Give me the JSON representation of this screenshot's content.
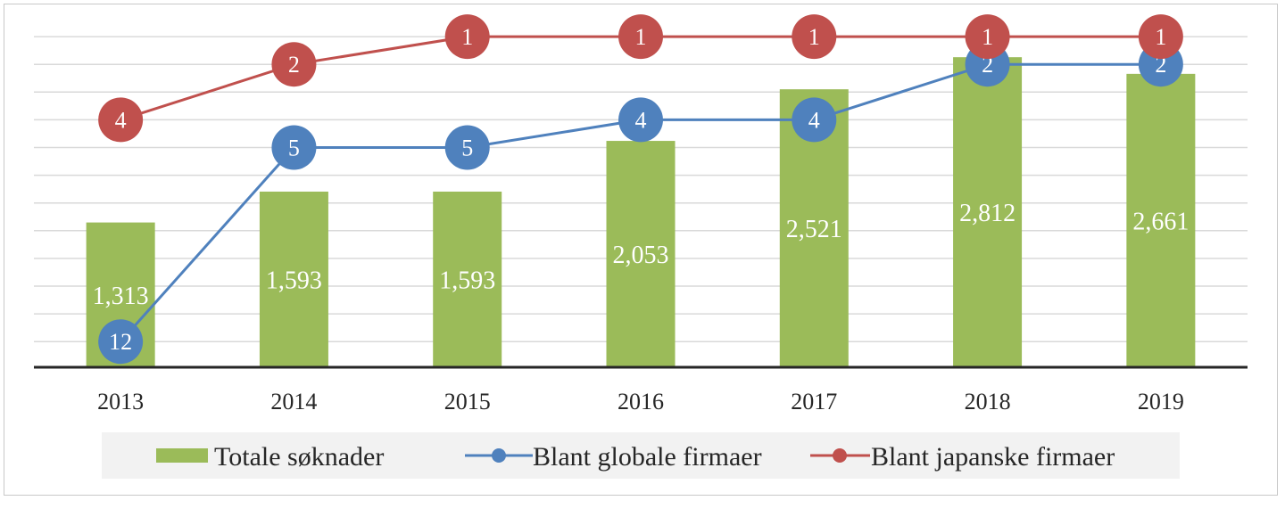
{
  "chart_data": {
    "type": "bar",
    "categories": [
      "2013",
      "2014",
      "2015",
      "2016",
      "2017",
      "2018",
      "2019"
    ],
    "bar_series": {
      "name": "Totale søknader",
      "values": [
        1313,
        1593,
        1593,
        2053,
        2521,
        2812,
        2661
      ],
      "labels": [
        "1,313",
        "1,593",
        "1,593",
        "2,053",
        "2,521",
        "2,812",
        "2,661"
      ],
      "color": "#9bbb59"
    },
    "line_series": [
      {
        "name": "Blant globale firmaer",
        "values": [
          12,
          5,
          5,
          4,
          4,
          2,
          2
        ],
        "labels": [
          "12",
          "5",
          "5",
          "4",
          "4",
          "2",
          "2"
        ],
        "color": "#4f81bd"
      },
      {
        "name": "Blant japanske firmaer",
        "values": [
          4,
          2,
          1,
          1,
          1,
          1,
          1
        ],
        "labels": [
          "4",
          "2",
          "1",
          "1",
          "1",
          "1",
          "1"
        ],
        "color": "#c0504d"
      }
    ],
    "bar_ylim": [
      0,
      3250
    ],
    "rank_ylim": [
      13,
      0
    ],
    "grid": true,
    "legend_position": "bottom",
    "title": "",
    "xlabel": "",
    "ylabel": ""
  }
}
